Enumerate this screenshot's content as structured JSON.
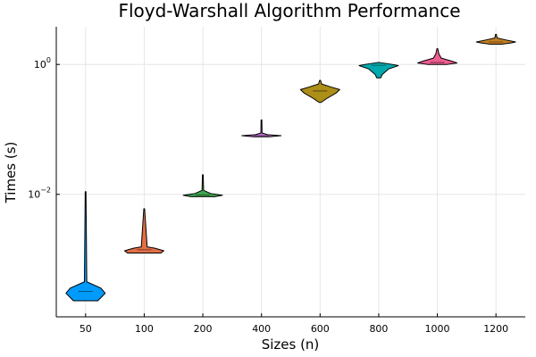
{
  "chart_data": {
    "type": "violin",
    "title": "Floyd-Warshall Algorithm Performance",
    "xlabel": "Sizes (n)",
    "ylabel": "Times (s)",
    "yscale": "log10",
    "ylim": [
      0.00013,
      3.8
    ],
    "grid": true,
    "legend": "none",
    "categories": [
      "50",
      "100",
      "200",
      "400",
      "600",
      "800",
      "1000",
      "1200"
    ],
    "y_ticks": [
      {
        "value": 0.01,
        "base": "10",
        "exp": "−2"
      },
      {
        "value": 1,
        "base": "10",
        "exp": "0"
      }
    ],
    "series": [
      {
        "category": "50",
        "color": "#009AFA",
        "min": 0.00023,
        "max": 0.011,
        "median": 0.00032,
        "profile": [
          [
            0.00023,
            0.62
          ],
          [
            0.0003,
            1.0
          ],
          [
            0.00036,
            0.78
          ],
          [
            0.00045,
            0.06
          ],
          [
            0.011,
            0.02
          ]
        ]
      },
      {
        "category": "100",
        "color": "#E26F46",
        "min": 0.00125,
        "max": 0.006,
        "median": 0.0014,
        "profile": [
          [
            0.00125,
            0.85
          ],
          [
            0.00135,
            1.0
          ],
          [
            0.00148,
            0.55
          ],
          [
            0.00155,
            0.15
          ],
          [
            0.006,
            0.02
          ]
        ]
      },
      {
        "category": "200",
        "color": "#3EA44E",
        "min": 0.0092,
        "max": 0.02,
        "median": 0.0098,
        "profile": [
          [
            0.0092,
            0.6
          ],
          [
            0.0097,
            1.0
          ],
          [
            0.0103,
            0.4
          ],
          [
            0.0115,
            0.04
          ],
          [
            0.02,
            0.02
          ]
        ]
      },
      {
        "category": "400",
        "color": "#C271D2",
        "min": 0.077,
        "max": 0.14,
        "median": 0.08,
        "profile": [
          [
            0.077,
            0.4
          ],
          [
            0.08,
            1.0
          ],
          [
            0.083,
            0.3
          ],
          [
            0.088,
            0.03
          ],
          [
            0.14,
            0.02
          ]
        ]
      },
      {
        "category": "600",
        "color": "#AC8E18",
        "min": 0.26,
        "max": 0.57,
        "median": 0.39,
        "profile": [
          [
            0.26,
            0.05
          ],
          [
            0.3,
            0.35
          ],
          [
            0.36,
            0.8
          ],
          [
            0.41,
            1.0
          ],
          [
            0.45,
            0.55
          ],
          [
            0.5,
            0.08
          ],
          [
            0.57,
            0.02
          ]
        ]
      },
      {
        "category": "800",
        "color": "#00A9AD",
        "min": 0.62,
        "max": 1.07,
        "median": 0.97,
        "profile": [
          [
            0.62,
            0.1
          ],
          [
            0.7,
            0.18
          ],
          [
            0.85,
            0.5
          ],
          [
            0.96,
            1.0
          ],
          [
            1.0,
            0.7
          ],
          [
            1.07,
            0.05
          ]
        ]
      },
      {
        "category": "1000",
        "color": "#ED5D92",
        "min": 1.0,
        "max": 1.75,
        "median": 1.07,
        "profile": [
          [
            1.0,
            0.5
          ],
          [
            1.05,
            1.0
          ],
          [
            1.12,
            0.75
          ],
          [
            1.25,
            0.2
          ],
          [
            1.45,
            0.08
          ],
          [
            1.75,
            0.02
          ]
        ]
      },
      {
        "category": "1200",
        "color": "#C68125",
        "min": 2.05,
        "max": 2.9,
        "median": 2.22,
        "profile": [
          [
            2.05,
            0.3
          ],
          [
            2.15,
            0.8
          ],
          [
            2.22,
            1.0
          ],
          [
            2.35,
            0.6
          ],
          [
            2.55,
            0.06
          ],
          [
            2.9,
            0.02
          ]
        ]
      }
    ]
  }
}
